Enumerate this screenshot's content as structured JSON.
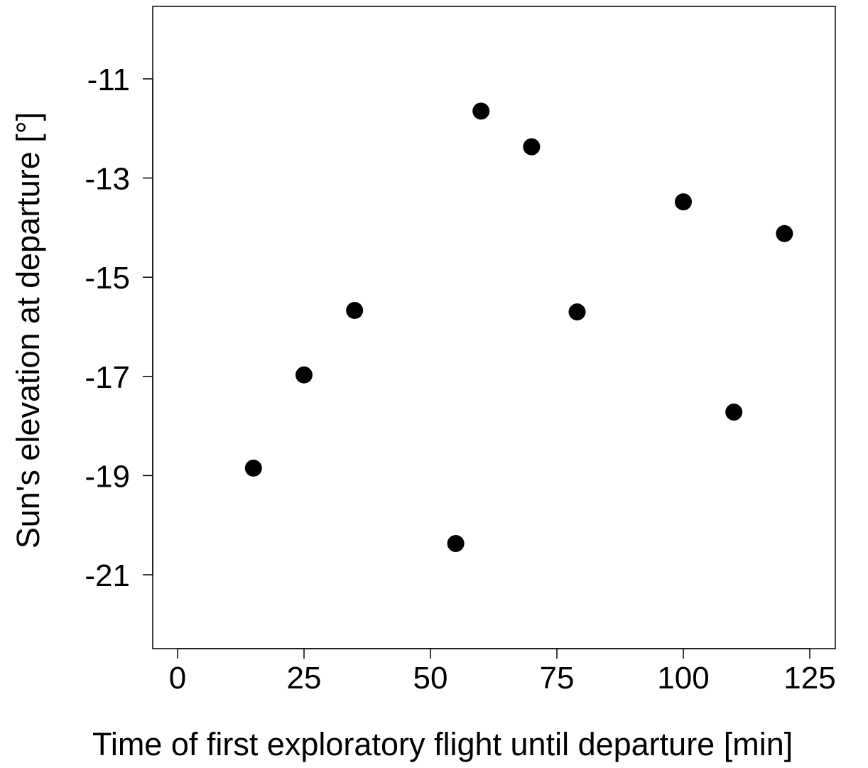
{
  "chart_data": {
    "type": "scatter",
    "xlabel": "Time of first exploratory flight until departure [min]",
    "ylabel": "Sun's elevation at departure [°]",
    "xlim": [
      -5,
      130
    ],
    "ylim": [
      -22.5,
      -9.5
    ],
    "xticks": [
      0,
      25,
      50,
      75,
      100,
      125
    ],
    "xtick_labels": [
      "0",
      "25",
      "50",
      "75",
      "100",
      "125"
    ],
    "yticks": [
      -11,
      -13,
      -15,
      -17,
      -19,
      -21
    ],
    "ytick_labels": [
      "-11",
      "-13",
      "-15",
      "-17",
      "-19",
      "-21"
    ],
    "grid": false,
    "marker_color": "#000000",
    "points": [
      {
        "x": 15,
        "y": -18.85
      },
      {
        "x": 25,
        "y": -16.97
      },
      {
        "x": 35,
        "y": -15.67
      },
      {
        "x": 55,
        "y": -20.37
      },
      {
        "x": 60,
        "y": -11.65
      },
      {
        "x": 70,
        "y": -12.37
      },
      {
        "x": 79,
        "y": -15.7
      },
      {
        "x": 100,
        "y": -13.48
      },
      {
        "x": 110,
        "y": -17.72
      },
      {
        "x": 120,
        "y": -14.12
      }
    ]
  }
}
